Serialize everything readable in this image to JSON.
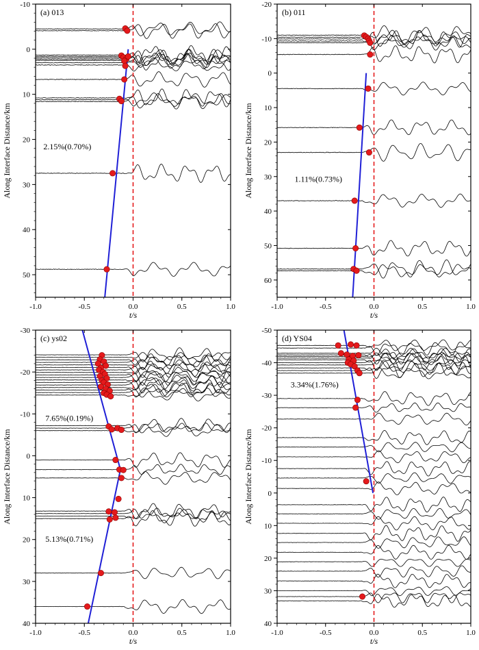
{
  "figure": {
    "background": "#ffffff",
    "trace_color": "#000000",
    "pick_color": "#e41a1c",
    "fit_line_color": "#1f1fd6",
    "zero_line_color": "#e41a1c"
  },
  "chart_data": [
    {
      "type": "scatter",
      "panel_label": "(a) 013",
      "xlabel": "t/s",
      "ylabel": "Along Interface Distance/km",
      "xlim": [
        -1.0,
        1.0
      ],
      "ylim": [
        -10,
        55
      ],
      "y_inverted": true,
      "xticks": [
        "-1.0",
        "-0.5",
        "0.0",
        "0.5",
        "1.0"
      ],
      "yticks": [
        "-10",
        "0",
        "10",
        "20",
        "30",
        "40",
        "50"
      ],
      "xtick_values": [
        -1.0,
        -0.5,
        0.0,
        0.5,
        1.0
      ],
      "ytick_values": [
        -10,
        0,
        10,
        20,
        30,
        40,
        50
      ],
      "traces_y": [
        -4.5,
        -4.1,
        1.3,
        1.6,
        1.9,
        2.2,
        2.5,
        3.0,
        3.5,
        6.7,
        10.8,
        11.2,
        11.6,
        27.5,
        48.8
      ],
      "picks": [
        [
          -0.08,
          -4.6
        ],
        [
          -0.06,
          -4.1
        ],
        [
          -0.12,
          1.4
        ],
        [
          -0.1,
          1.8
        ],
        [
          -0.07,
          2.2
        ],
        [
          -0.05,
          1.6
        ],
        [
          -0.09,
          2.6
        ],
        [
          -0.08,
          3.7
        ],
        [
          -0.09,
          6.7
        ],
        [
          -0.14,
          11.0
        ],
        [
          -0.12,
          11.5
        ],
        [
          -0.21,
          27.5
        ],
        [
          -0.27,
          48.8
        ]
      ],
      "fit_line": [
        [
          -0.05,
          0
        ],
        [
          -0.29,
          55
        ]
      ],
      "annotations": [
        {
          "text": "2.15%(0.70%)",
          "x": -0.92,
          "y": 22.2
        }
      ]
    },
    {
      "type": "scatter",
      "panel_label": "(b) 011",
      "xlabel": "t/s",
      "ylabel": "Along Interface Distance/km",
      "xlim": [
        -1.0,
        1.0
      ],
      "ylim": [
        -20,
        65
      ],
      "y_inverted": true,
      "xticks": [
        "-1.0",
        "-0.5",
        "0.0",
        "0.5",
        "1.0"
      ],
      "yticks": [
        "-20",
        "-10",
        "0",
        "10",
        "20",
        "30",
        "40",
        "50",
        "60"
      ],
      "xtick_values": [
        -1.0,
        -0.5,
        0.0,
        0.5,
        1.0
      ],
      "ytick_values": [
        -20,
        -10,
        0,
        10,
        20,
        30,
        40,
        50,
        60
      ],
      "traces_y": [
        -11.0,
        -10.4,
        -9.9,
        -9.3,
        -8.8,
        -5.4,
        4.5,
        15.8,
        23.0,
        37.0,
        50.8,
        56.8,
        57.3
      ],
      "picks": [
        [
          -0.1,
          -10.9
        ],
        [
          -0.08,
          -10.5
        ],
        [
          -0.06,
          -10.0
        ],
        [
          -0.05,
          -9.4
        ],
        [
          -0.04,
          -8.8
        ],
        [
          -0.04,
          -5.4
        ],
        [
          -0.06,
          4.5
        ],
        [
          -0.15,
          15.8
        ],
        [
          -0.05,
          23.0
        ],
        [
          -0.2,
          37.0
        ],
        [
          -0.19,
          50.8
        ],
        [
          -0.21,
          56.8
        ],
        [
          -0.18,
          57.3
        ]
      ],
      "fit_line": [
        [
          -0.08,
          0
        ],
        [
          -0.22,
          65
        ]
      ],
      "annotations": [
        {
          "text": "1.11%(0.73%)",
          "x": -0.82,
          "y": 31.5
        }
      ]
    },
    {
      "type": "scatter",
      "panel_label": "(c) ys02",
      "xlabel": "t/s",
      "ylabel": "Along Interface Distance/km",
      "xlim": [
        -1.0,
        1.0
      ],
      "ylim": [
        -30,
        40
      ],
      "y_inverted": true,
      "xticks": [
        "-1.0",
        "-0.5",
        "0.0",
        "0.5",
        "1.0"
      ],
      "yticks": [
        "-30",
        "-20",
        "-10",
        "0",
        "10",
        "20",
        "30",
        "40"
      ],
      "xtick_values": [
        -1.0,
        -0.5,
        0.0,
        0.5,
        1.0
      ],
      "ytick_values": [
        -30,
        -20,
        -10,
        0,
        10,
        20,
        30,
        40
      ],
      "traces_y": [
        -24.1,
        -23.5,
        -22.9,
        -22.3,
        -21.7,
        -21.1,
        -20.5,
        -19.9,
        -19.3,
        -18.7,
        -18.1,
        -17.5,
        -16.9,
        -16.3,
        -15.7,
        -15.1,
        -14.5,
        -7.2,
        -6.6,
        -6.0,
        1.0,
        3.3,
        5.3,
        13.2,
        13.8,
        14.4,
        15.0,
        28.0,
        36.0
      ],
      "picks": [
        [
          -0.32,
          -24.0
        ],
        [
          -0.34,
          -23.0
        ],
        [
          -0.3,
          -22.5
        ],
        [
          -0.36,
          -22.0
        ],
        [
          -0.28,
          -21.5
        ],
        [
          -0.33,
          -21.0
        ],
        [
          -0.35,
          -20.5
        ],
        [
          -0.31,
          -20.0
        ],
        [
          -0.29,
          -19.5
        ],
        [
          -0.34,
          -19.0
        ],
        [
          -0.27,
          -18.5
        ],
        [
          -0.32,
          -18.0
        ],
        [
          -0.3,
          -17.5
        ],
        [
          -0.26,
          -17.0
        ],
        [
          -0.33,
          -16.5
        ],
        [
          -0.28,
          -16.0
        ],
        [
          -0.24,
          -15.5
        ],
        [
          -0.3,
          -15.0
        ],
        [
          -0.27,
          -14.6
        ],
        [
          -0.23,
          -14.2
        ],
        [
          -0.25,
          -7.0
        ],
        [
          -0.22,
          -6.3
        ],
        [
          -0.16,
          -6.6
        ],
        [
          -0.12,
          -6.2
        ],
        [
          -0.18,
          1.0
        ],
        [
          -0.14,
          3.3
        ],
        [
          -0.1,
          3.4
        ],
        [
          -0.12,
          5.3
        ],
        [
          -0.15,
          10.3
        ],
        [
          -0.25,
          13.3
        ],
        [
          -0.19,
          13.5
        ],
        [
          -0.18,
          14.8
        ],
        [
          -0.24,
          15.2
        ],
        [
          -0.33,
          28.0
        ],
        [
          -0.47,
          36.0
        ]
      ],
      "fit_line": [
        [
          -0.52,
          -30
        ],
        [
          -0.13,
          3.3
        ],
        [
          -0.46,
          40
        ]
      ],
      "annotations": [
        {
          "text": "7.65%(0.19%)",
          "x": -0.9,
          "y": -8.3
        },
        {
          "text": "5.13%(0.71%)",
          "x": -0.9,
          "y": 20.5
        }
      ]
    },
    {
      "type": "scatter",
      "panel_label": "(d) YS04",
      "xlabel": "t/s",
      "ylabel": "Along Interface Distance/km",
      "xlim": [
        -1.0,
        1.0
      ],
      "ylim": [
        -50,
        40
      ],
      "y_inverted": true,
      "xticks": [
        "-1.0",
        "-0.5",
        "0.0",
        "0.5",
        "1.0"
      ],
      "yticks": [
        "-50",
        "-40",
        "-30",
        "-20",
        "-10",
        "0",
        "10",
        "20",
        "30",
        "40"
      ],
      "xtick_values": [
        -1.0,
        -0.5,
        0.0,
        0.5,
        1.0
      ],
      "ytick_values": [
        -50,
        -40,
        -30,
        -20,
        -10,
        0,
        10,
        20,
        30,
        40
      ],
      "traces_y": [
        -45.3,
        -44.5,
        -42.9,
        -42.4,
        -41.9,
        -41.4,
        -40.9,
        -40.0,
        -39.3,
        -38.4,
        -37.6,
        -36.8,
        -29.0,
        -26.2,
        -22.7,
        -17.0,
        -14.1,
        -11.1,
        -7.5,
        -4.6,
        -1.4,
        3.6,
        6.4,
        9.3,
        12.4,
        15.2,
        18.2,
        21.1,
        24.0,
        27.0,
        30.0,
        31.8,
        33.1
      ],
      "picks": [
        [
          -0.37,
          -45.3
        ],
        [
          -0.24,
          -45.6
        ],
        [
          -0.18,
          -45.3
        ],
        [
          -0.34,
          -42.9
        ],
        [
          -0.28,
          -42.5
        ],
        [
          -0.22,
          -42.1
        ],
        [
          -0.16,
          -42.3
        ],
        [
          -0.26,
          -41.0
        ],
        [
          -0.21,
          -40.6
        ],
        [
          -0.27,
          -40.0
        ],
        [
          -0.24,
          -39.5
        ],
        [
          -0.2,
          -38.9
        ],
        [
          -0.17,
          -37.6
        ],
        [
          -0.15,
          -36.8
        ],
        [
          -0.17,
          -28.6
        ],
        [
          -0.19,
          -26.2
        ],
        [
          -0.08,
          -3.6
        ],
        [
          -0.12,
          31.8
        ]
      ],
      "fit_line": [
        [
          -0.31,
          -50
        ],
        [
          -0.01,
          0
        ]
      ],
      "annotations": [
        {
          "text": "3.34%(1.76%)",
          "x": -0.86,
          "y": -32.4
        }
      ]
    }
  ]
}
